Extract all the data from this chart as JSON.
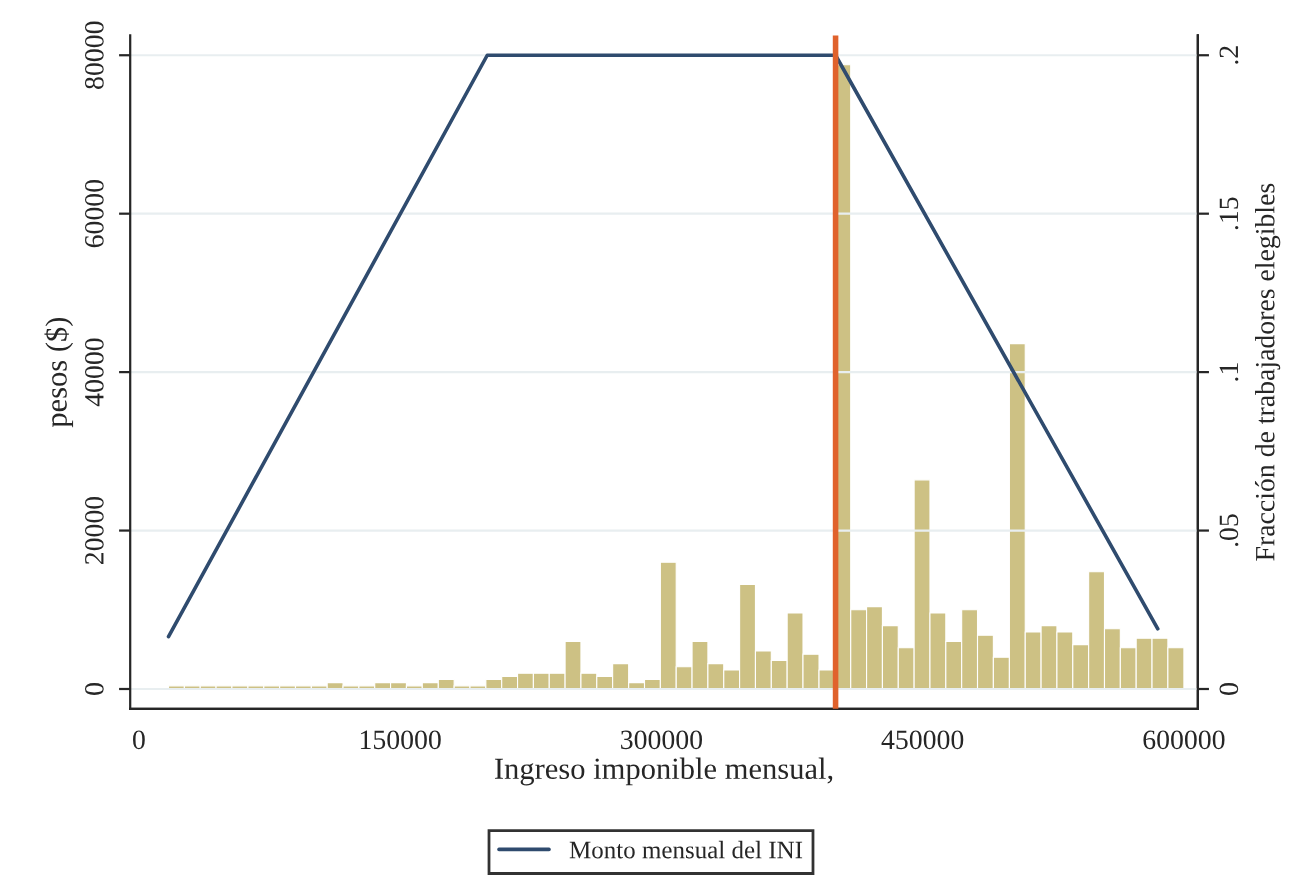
{
  "chart_data": {
    "type": "line",
    "xlabel": "Ingreso imponible mensual,",
    "ylabel": "pesos ($)",
    "y2label": "Fracción de trabajadores elegibles",
    "xlim": [
      -5000,
      608000
    ],
    "xticks": [
      0,
      150000,
      300000,
      450000,
      600000
    ],
    "ylim": [
      -2500,
      82500
    ],
    "yticks": [
      0,
      20000,
      40000,
      60000,
      80000
    ],
    "y2lim": [
      -0.00625,
      0.20625
    ],
    "y2ticks": [
      {
        "value": 0,
        "label": "0"
      },
      {
        "value": 0.05,
        "label": ".05"
      },
      {
        "value": 0.1,
        "label": ".1"
      },
      {
        "value": 0.15,
        "label": ".15"
      },
      {
        "value": 0.2,
        "label": ".2"
      }
    ],
    "grid": "y",
    "legend": "bottom",
    "series": [
      {
        "type": "histogram",
        "axis": "y2",
        "color": "#cdc184",
        "bins": [
          17000,
          26100,
          35200,
          44300,
          53400,
          62600,
          71700,
          80800,
          89900,
          99000,
          108100,
          117200,
          126300,
          135400,
          144500,
          153600,
          162700,
          171900,
          181000,
          190100,
          199200,
          208300,
          217400,
          226500,
          235600,
          244700,
          253800,
          262900,
          272000,
          281200,
          290300,
          299400,
          308500,
          317600,
          326700,
          335800,
          344900,
          354000,
          363100,
          372200,
          381300,
          390500,
          399600,
          408700,
          417800,
          426900,
          436000,
          445100,
          454200,
          463300,
          472400,
          481500,
          490600,
          499800,
          508900,
          518000,
          527100,
          536200,
          545300,
          554400,
          563500,
          572600,
          581700,
          590800,
          600000
        ],
        "values": [
          0.001,
          0.001,
          0.001,
          0.001,
          0.001,
          0.001,
          0.001,
          0.001,
          0.001,
          0.001,
          0.002,
          0.001,
          0.001,
          0.002,
          0.002,
          0.001,
          0.002,
          0.003,
          0.001,
          0.001,
          0.003,
          0.004,
          0.005,
          0.005,
          0.005,
          0.015,
          0.005,
          0.004,
          0.008,
          0.002,
          0.003,
          0.04,
          0.007,
          0.015,
          0.008,
          0.006,
          0.033,
          0.012,
          0.009,
          0.024,
          0.011,
          0.006,
          0.197,
          0.025,
          0.026,
          0.02,
          0.013,
          0.066,
          0.024,
          0.015,
          0.025,
          0.017,
          0.01,
          0.109,
          0.018,
          0.02,
          0.018,
          0.014,
          0.037,
          0.019,
          0.013,
          0.016,
          0.016,
          0.013
        ]
      },
      {
        "name": "Monto mensual del INI",
        "color": "#2f4b6e",
        "x": [
          17000,
          200000,
          400000,
          585000
        ],
        "values": [
          6600,
          80000,
          80000,
          7600
        ]
      }
    ],
    "ref_lines": [
      {
        "axis": "x",
        "value": 400000,
        "color": "#e0622c"
      }
    ]
  }
}
